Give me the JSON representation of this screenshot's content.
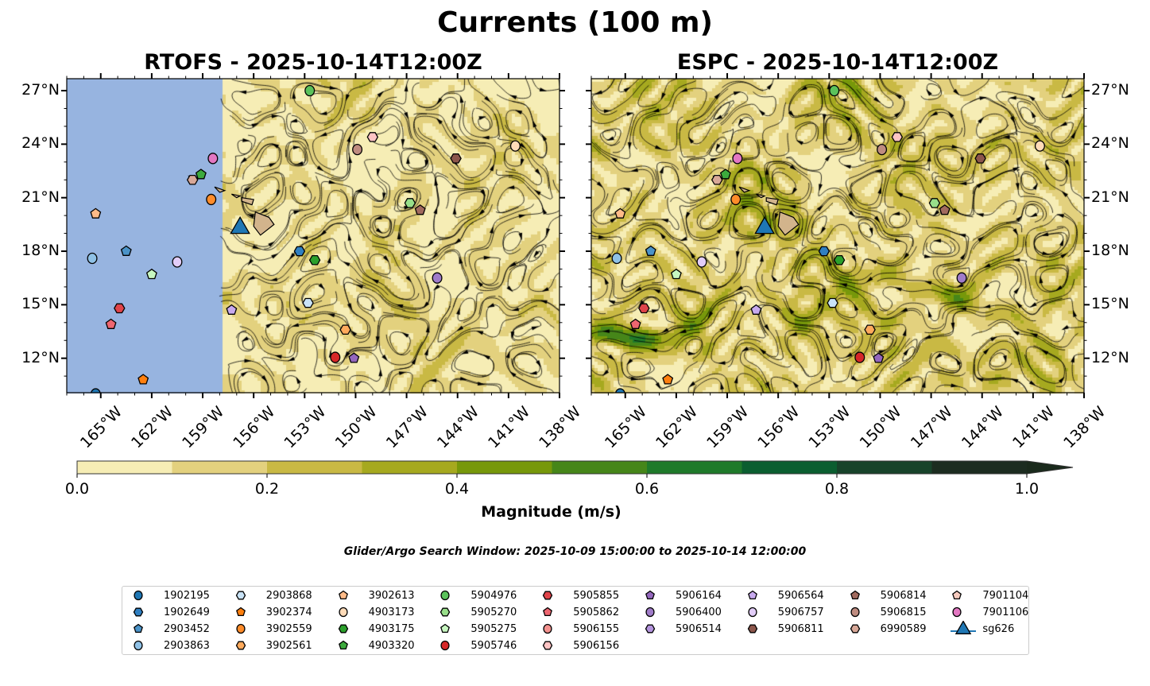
{
  "title": "Currents (100 m)",
  "panels": [
    {
      "id": "rtofs",
      "title": "RTOFS - 2025-10-14T12:00Z"
    },
    {
      "id": "espc",
      "title": "ESPC - 2025-10-14T12:00Z"
    }
  ],
  "axes": {
    "lon_ticks": [
      "165°W",
      "162°W",
      "159°W",
      "156°W",
      "153°W",
      "150°W",
      "147°W",
      "144°W",
      "141°W",
      "138°W"
    ],
    "lon_values": [
      -165,
      -162,
      -159,
      -156,
      -153,
      -150,
      -147,
      -144,
      -141,
      -138
    ],
    "lat_ticks": [
      "27°N",
      "24°N",
      "21°N",
      "18°N",
      "15°N",
      "12°N"
    ],
    "lat_values": [
      27,
      24,
      21,
      18,
      15,
      12
    ],
    "lon_range": [
      -167,
      -138
    ],
    "lat_range": [
      10.07,
      27.67
    ]
  },
  "colorbar": {
    "label": "Magnitude (m/s)",
    "tick_labels": [
      "0.0",
      "0.2",
      "0.4",
      "0.6",
      "0.8",
      "1.0"
    ],
    "levels": [
      0,
      0.1,
      0.2,
      0.3,
      0.4,
      0.5,
      0.6,
      0.7,
      0.8,
      0.9,
      1.0
    ],
    "colors": [
      "#f6edb5",
      "#e3d17e",
      "#c9b944",
      "#a6a91f",
      "#77980a",
      "#468619",
      "#1f7a2a",
      "#0b5e30",
      "#17432a",
      "#1c2c20"
    ],
    "extend_color": "#1a2a1c"
  },
  "search_window": "Glider/Argo Search Window: 2025-10-09 15:00:00 to 2025-10-14 12:00:00",
  "no_data_color": "#97b4e0",
  "land_color": "#d2b48c",
  "legend": [
    {
      "label": "1902195",
      "shape": "circle",
      "color": "#1f77b4",
      "lon": -165.3,
      "lat": 10.0
    },
    {
      "label": "1902649",
      "shape": "hexagon",
      "color": "#2f7fc1",
      "lon": -153.3,
      "lat": 18.0
    },
    {
      "label": "2903452",
      "shape": "pentagon",
      "color": "#4b93c8",
      "lon": -163.5,
      "lat": 18.0
    },
    {
      "label": "2903863",
      "shape": "circle",
      "color": "#8fc1e6",
      "lon": -165.5,
      "lat": 17.6
    },
    {
      "label": "2903868",
      "shape": "hexagon",
      "color": "#c9e3f7",
      "lon": -152.8,
      "lat": 15.1
    },
    {
      "label": "3902374",
      "shape": "pentagon",
      "color": "#ff7f0e",
      "lon": -162.5,
      "lat": 10.8
    },
    {
      "label": "3902559",
      "shape": "circle",
      "color": "#ff8c2a",
      "lon": -158.5,
      "lat": 20.9
    },
    {
      "label": "3902561",
      "shape": "hexagon",
      "color": "#ffaa5c",
      "lon": -150.6,
      "lat": 13.6
    },
    {
      "label": "3902613",
      "shape": "pentagon",
      "color": "#ffbb88",
      "lon": -165.3,
      "lat": 20.1
    },
    {
      "label": "4903173",
      "shape": "circle",
      "color": "#ffdbb8",
      "lon": -140.6,
      "lat": 23.9
    },
    {
      "label": "4903175",
      "shape": "hexagon",
      "color": "#2ca02c",
      "lon": -152.4,
      "lat": 17.5
    },
    {
      "label": "4903320",
      "shape": "pentagon",
      "color": "#3daa3d",
      "lon": -159.1,
      "lat": 22.3
    },
    {
      "label": "5904976",
      "shape": "circle",
      "color": "#5bc25b",
      "lon": -152.7,
      "lat": 27.0
    },
    {
      "label": "5905270",
      "shape": "hexagon",
      "color": "#98df8a",
      "lon": -146.8,
      "lat": 20.7
    },
    {
      "label": "5905275",
      "shape": "pentagon",
      "color": "#c7f7c0",
      "lon": -162.0,
      "lat": 16.7
    },
    {
      "label": "5905746",
      "shape": "circle",
      "color": "#d62728",
      "lon": -151.2,
      "lat": 12.05
    },
    {
      "label": "5905855",
      "shape": "hexagon",
      "color": "#e0444a",
      "lon": -163.9,
      "lat": 14.8
    },
    {
      "label": "5905862",
      "shape": "pentagon",
      "color": "#ee6670",
      "lon": -164.4,
      "lat": 13.9
    },
    {
      "label": "5906155",
      "shape": "circle",
      "color": "#f4928f",
      "lon": null,
      "lat": null
    },
    {
      "label": "5906156",
      "shape": "hexagon",
      "color": "#ffc4c4",
      "lon": -149.0,
      "lat": 24.4
    },
    {
      "label": "5906164",
      "shape": "pentagon",
      "color": "#9467bd",
      "lon": -150.1,
      "lat": 12.0
    },
    {
      "label": "5906400",
      "shape": "circle",
      "color": "#a07cc9",
      "lon": -145.2,
      "lat": 16.5
    },
    {
      "label": "5906514",
      "shape": "hexagon",
      "color": "#b494dd",
      "lon": null,
      "lat": null
    },
    {
      "label": "5906564",
      "shape": "pentagon",
      "color": "#c8aaee",
      "lon": -157.3,
      "lat": 14.7
    },
    {
      "label": "5906757",
      "shape": "circle",
      "color": "#e2cdf8",
      "lon": -160.5,
      "lat": 17.4
    },
    {
      "label": "5906811",
      "shape": "hexagon",
      "color": "#8c564b",
      "lon": -144.1,
      "lat": 23.2
    },
    {
      "label": "5906814",
      "shape": "pentagon",
      "color": "#a16a5e",
      "lon": -146.2,
      "lat": 20.3
    },
    {
      "label": "5906815",
      "shape": "circle",
      "color": "#bf8c80",
      "lon": -149.9,
      "lat": 23.7
    },
    {
      "label": "6990589",
      "shape": "hexagon",
      "color": "#d8a898",
      "lon": -159.6,
      "lat": 22.0
    },
    {
      "label": "7901104",
      "shape": "pentagon",
      "color": "#f7cbbf",
      "lon": null,
      "lat": null
    },
    {
      "label": "7901106",
      "shape": "circle",
      "color": "#e377c2",
      "lon": -158.4,
      "lat": 23.2
    },
    {
      "label": "sg626",
      "shape": "triangle",
      "color": "#1f77b4",
      "lon": -156.8,
      "lat": 19.3
    }
  ]
}
